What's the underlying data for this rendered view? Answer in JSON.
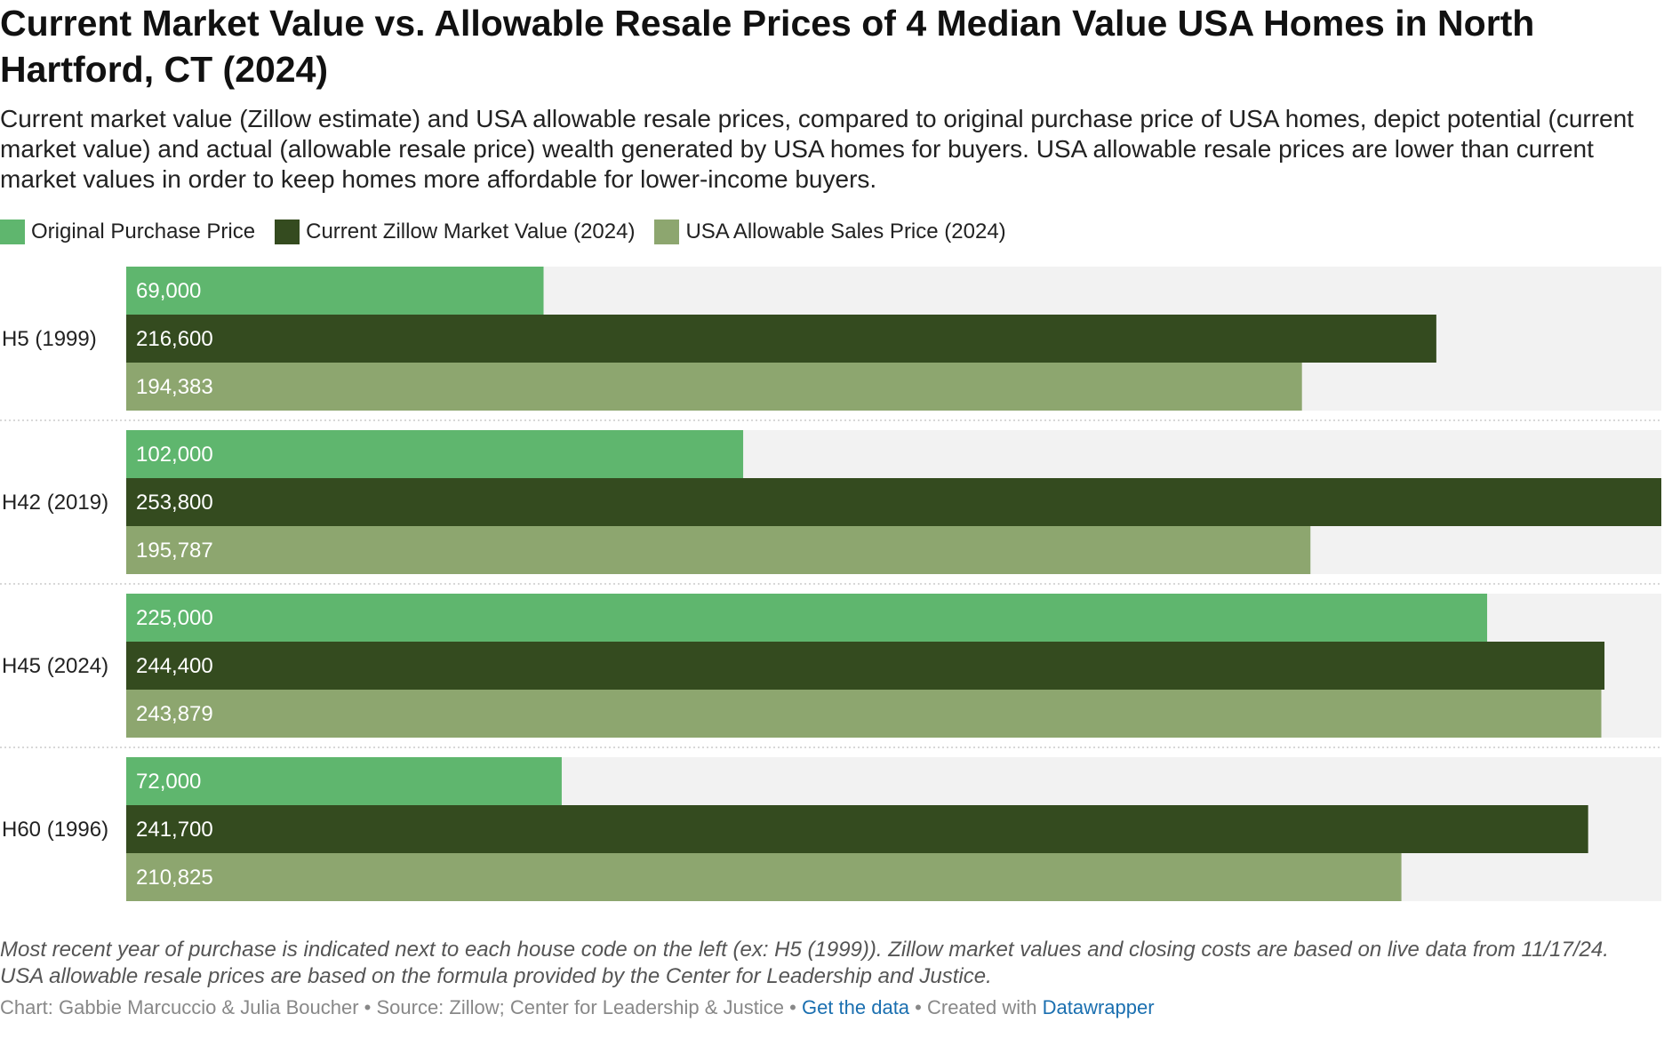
{
  "chart_data": {
    "type": "bar",
    "orientation": "horizontal",
    "title": "Current Market Value vs. Allowable Resale Prices of 4 Median Value USA Homes in North Hartford, CT (2024)",
    "subtitle": "Current market value (Zillow estimate) and USA allowable resale prices, compared to original purchase price of USA homes, depict potential (current market value) and actual (allowable resale price) wealth generated by USA homes for buyers. USA allowable resale prices are lower than current market values in order to keep homes more affordable for lower-income buyers.",
    "categories": [
      "H5 (1999)",
      "H42 (2019)",
      "H45 (2024)",
      "H60 (1996)"
    ],
    "series": [
      {
        "name": "Original Purchase Price",
        "color": "#5fb66e",
        "values": [
          69000,
          102000,
          225000,
          72000
        ],
        "labels": [
          "69,000",
          "102,000",
          "225,000",
          "72,000"
        ]
      },
      {
        "name": "Current Zillow Market Value (2024)",
        "color": "#344b1f",
        "values": [
          216600,
          253800,
          244400,
          241700
        ],
        "labels": [
          "216,600",
          "253,800",
          "244,400",
          "241,700"
        ]
      },
      {
        "name": "USA Allowable Sales Price (2024)",
        "color": "#8da66f",
        "values": [
          194383,
          195787,
          243879,
          210825
        ],
        "labels": [
          "194,383",
          "195,787",
          "243,879",
          "210,825"
        ]
      }
    ],
    "xlim": [
      0,
      253800
    ],
    "xlabel": "",
    "ylabel": "",
    "legend": "top-left",
    "grid": false,
    "note": "Most recent year of purchase is indicated next to each house code on the left (ex: H5 (1999)). Zillow market values and closing costs are based on live data from 11/17/24. USA allowable resale prices are based on the formula provided by the Center for Leadership and Justice."
  },
  "footer": {
    "credit": "Chart: Gabbie Marcuccio & Julia Boucher",
    "separator": " • ",
    "source": "Source: Zillow; Center for Leadership & Justice",
    "get_data": "Get the data",
    "created_with": "Created with",
    "datawrapper": "Datawrapper"
  },
  "colors": {
    "track": "#f2f2f2",
    "divider": "#cccccc",
    "link": "#1a6fb0"
  }
}
